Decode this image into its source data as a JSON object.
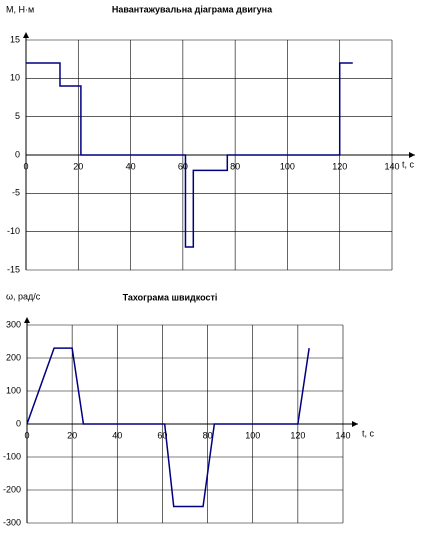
{
  "chart_data": [
    {
      "type": "line",
      "title": "Навантажувальна діаграма двигуна",
      "ylabel": "M, Н·м",
      "xlabel": "t, c",
      "x": [
        0,
        13,
        13,
        21,
        21,
        61,
        61,
        64,
        64,
        77,
        77,
        120,
        120,
        125
      ],
      "values": [
        12,
        12,
        9,
        9,
        0,
        0,
        -12,
        -12,
        -2,
        -2,
        0,
        0,
        12,
        12
      ],
      "color": "#000080",
      "xlim": [
        0,
        140
      ],
      "xticks": [
        0,
        20,
        40,
        60,
        80,
        100,
        120,
        140
      ],
      "ylim": [
        -15,
        15
      ],
      "yticks": [
        -15,
        -10,
        -5,
        0,
        5,
        10,
        15
      ],
      "grid": true
    },
    {
      "type": "line",
      "title": "Тахограма швидкості",
      "ylabel": "ω, рад/с",
      "xlabel": "t, c",
      "x": [
        0,
        12,
        20,
        25,
        61,
        65,
        78,
        83,
        120,
        125
      ],
      "values": [
        0,
        230,
        230,
        0,
        0,
        -250,
        -250,
        0,
        0,
        230
      ],
      "color": "#000080",
      "xlim": [
        0,
        140
      ],
      "xticks": [
        0,
        20,
        40,
        60,
        80,
        100,
        120,
        140
      ],
      "ylim": [
        -300,
        300
      ],
      "yticks": [
        -300,
        -200,
        -100,
        0,
        100,
        200,
        300
      ],
      "grid": true
    }
  ]
}
